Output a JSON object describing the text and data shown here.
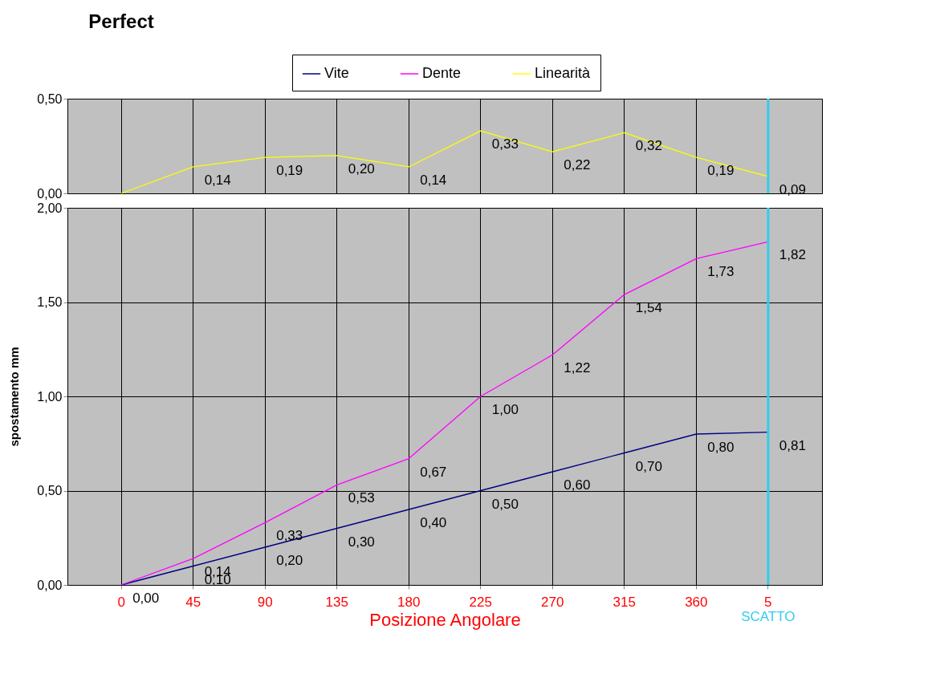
{
  "chart_data": [
    {
      "type": "line",
      "title": "Perfect",
      "categories": [
        "0",
        "45",
        "90",
        "135",
        "180",
        "225",
        "270",
        "315",
        "360",
        "5"
      ],
      "ylim": [
        0,
        0.5
      ],
      "yticks": [
        {
          "value": 0,
          "label": "0,00"
        },
        {
          "value": 0.5,
          "label": "0,50"
        }
      ],
      "grid": true,
      "legend": "top",
      "tick_labels": "y",
      "marker": "none",
      "line_style": "solid",
      "series": [
        {
          "name": "Linearità",
          "color": "#ffff00",
          "values": [
            0,
            0.14,
            0.19,
            0.2,
            0.14,
            0.33,
            0.22,
            0.32,
            0.19,
            0.09
          ],
          "value_labels": [
            null,
            "0,14",
            "0,19",
            "0,20",
            "0,14",
            "0,33",
            "0,22",
            "0,32",
            "0,19",
            "0,09"
          ]
        }
      ],
      "ref_lines": [
        {
          "axis": "x",
          "value": "5",
          "color": "#33ccee"
        }
      ]
    },
    {
      "type": "line",
      "categories": [
        "0",
        "45",
        "90",
        "135",
        "180",
        "225",
        "270",
        "315",
        "360",
        "5"
      ],
      "xlabel": "Posizione Angolare",
      "ylabel": "spostamento mm",
      "ylim": [
        0,
        2
      ],
      "yticks": [
        {
          "value": 0,
          "label": "0,00"
        },
        {
          "value": 0.5,
          "label": "0,50"
        },
        {
          "value": 1,
          "label": "1,00"
        },
        {
          "value": 1.5,
          "label": "1,50"
        },
        {
          "value": 2,
          "label": "2,00"
        }
      ],
      "grid": true,
      "legend": "top",
      "marker": "none",
      "line_style": "solid",
      "series": [
        {
          "name": "Vite",
          "color": "#000080",
          "values": [
            0,
            0.1,
            0.2,
            0.3,
            0.4,
            0.5,
            0.6,
            0.7,
            0.8,
            0.81
          ],
          "value_labels": [
            "0,00",
            "0,10",
            "0,20",
            "0,30",
            "0,40",
            "0,50",
            "0,60",
            "0,70",
            "0,80",
            "0,81"
          ]
        },
        {
          "name": "Dente",
          "color": "#ff00ff",
          "values": [
            0,
            0.14,
            0.33,
            0.53,
            0.67,
            1.0,
            1.22,
            1.54,
            1.73,
            1.82
          ],
          "value_labels": [
            null,
            "0,14",
            "0,33",
            "0,53",
            "0,67",
            "1,00",
            "1,22",
            "1,54",
            "1,73",
            "1,82"
          ]
        }
      ],
      "ref_lines": [
        {
          "axis": "x",
          "value": "5",
          "color": "#33ccee",
          "label": "SCATTO"
        }
      ]
    }
  ]
}
